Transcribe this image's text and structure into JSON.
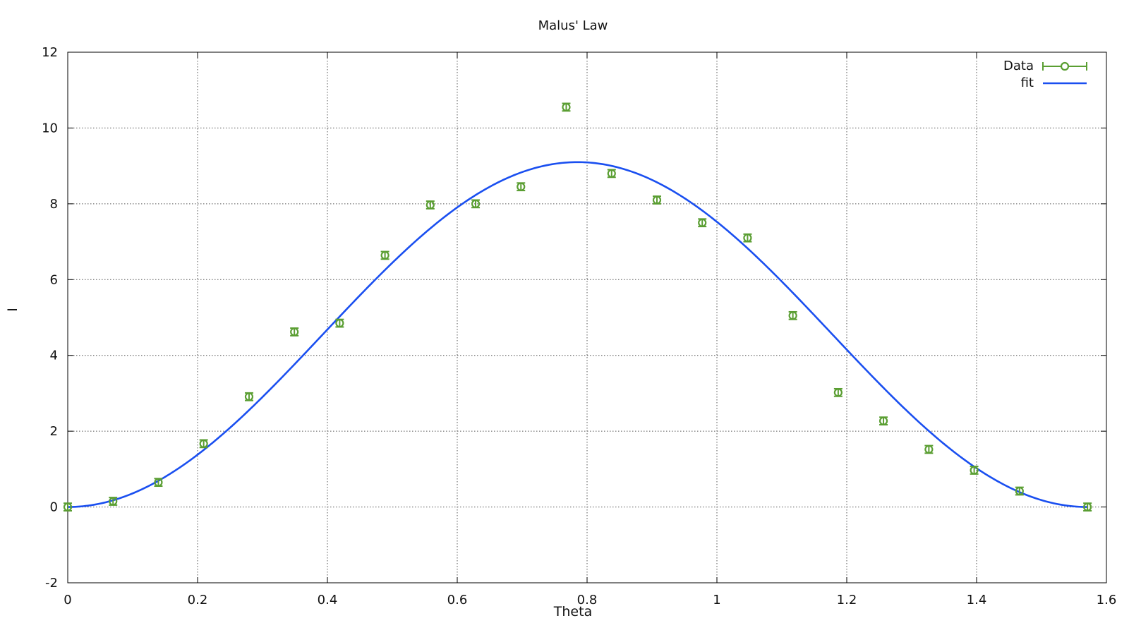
{
  "chart_data": {
    "type": "scatter",
    "title": "Malus' Law",
    "xlabel": "Theta",
    "ylabel": "I",
    "xlim": [
      0,
      1.6
    ],
    "ylim": [
      -2,
      12
    ],
    "x_ticks": [
      "0",
      "0.2",
      "0.4",
      "0.6",
      "0.8",
      "1",
      "1.2",
      "1.4",
      "1.6"
    ],
    "y_ticks": [
      "-2",
      "0",
      "2",
      "4",
      "6",
      "8",
      "10",
      "12"
    ],
    "grid": true,
    "legend_position": "top-right",
    "series": [
      {
        "name": "Data",
        "kind": "points-with-errorbars",
        "color": "#5a9e32",
        "x": [
          0.0,
          0.0698,
          0.1396,
          0.2094,
          0.2793,
          0.3491,
          0.4189,
          0.4887,
          0.5585,
          0.6283,
          0.6981,
          0.7679,
          0.8378,
          0.9076,
          0.9774,
          1.0472,
          1.117,
          1.1868,
          1.2566,
          1.3265,
          1.3963,
          1.4661,
          1.5708
        ],
        "y": [
          0.0,
          0.15,
          0.65,
          1.67,
          2.91,
          4.62,
          4.85,
          6.64,
          7.97,
          8.0,
          8.45,
          10.55,
          8.8,
          8.1,
          7.5,
          7.1,
          5.05,
          3.02,
          2.27,
          1.52,
          0.97,
          0.42,
          0.0
        ],
        "error": 0.1
      },
      {
        "name": "fit",
        "kind": "line",
        "color": "#1a4ff0",
        "function": "9.1 * sin^2(2 * theta)",
        "x_range": [
          0,
          1.57
        ]
      }
    ]
  }
}
